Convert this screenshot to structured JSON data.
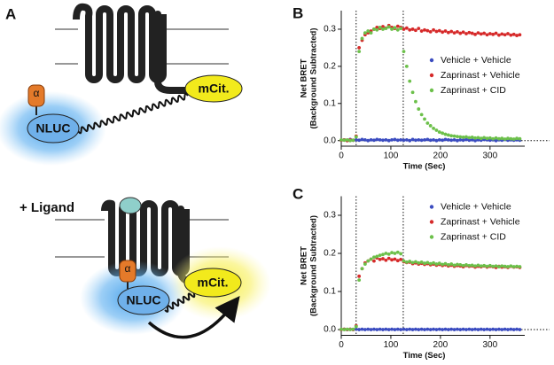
{
  "diagram": {
    "panel": "A",
    "top": {
      "acceptor": "mCit.",
      "donor": "NLUC",
      "g_protein": "α"
    },
    "bottom": {
      "condition": "+ Ligand",
      "acceptor": "mCit.",
      "donor": "NLUC",
      "g_protein": "α"
    }
  },
  "chart_data": [
    {
      "type": "scatter",
      "panel": "B",
      "xlabel": "Time (Sec)",
      "ylabel": [
        "Net BRET",
        "(Background Subtracted)"
      ],
      "xlim": [
        0,
        370
      ],
      "xticks": [
        0,
        100,
        200,
        300
      ],
      "ylim": [
        -0.015,
        0.35
      ],
      "yticks": [
        {
          "value": 0,
          "label": "0.0"
        },
        {
          "value": 0.1,
          "label": "0.1"
        },
        {
          "value": 0.2,
          "label": "0.2"
        },
        {
          "value": 0.3,
          "label": "0.3"
        }
      ],
      "vlines": [
        30,
        125
      ],
      "legend": "center right",
      "x": [
        0,
        6,
        12,
        18,
        24,
        30,
        36,
        42,
        48,
        54,
        60,
        66,
        72,
        78,
        84,
        90,
        96,
        102,
        108,
        114,
        120,
        126,
        132,
        138,
        144,
        150,
        156,
        162,
        168,
        174,
        180,
        186,
        192,
        198,
        204,
        210,
        216,
        222,
        228,
        234,
        240,
        246,
        252,
        258,
        264,
        270,
        276,
        282,
        288,
        294,
        300,
        306,
        312,
        318,
        324,
        330,
        336,
        342,
        348,
        354,
        360
      ],
      "series": [
        {
          "name": "Vehicle + Vehicle",
          "color": "#3b4cc0",
          "values": [
            0.001,
            0.002,
            0.0,
            0.003,
            0.001,
            0.002,
            0.001,
            0.003,
            0.002,
            0.0,
            0.002,
            0.001,
            0.003,
            0.002,
            0.001,
            0.002,
            0.0,
            0.002,
            0.003,
            0.001,
            0.002,
            0.001,
            0.002,
            0.0,
            0.003,
            0.001,
            0.002,
            0.001,
            0.002,
            0.003,
            0.001,
            0.002,
            0.0,
            0.002,
            0.001,
            0.003,
            0.002,
            0.001,
            0.002,
            0.0,
            0.002,
            0.001,
            0.003,
            0.001,
            0.002,
            0.0,
            0.002,
            0.001,
            0.003,
            0.002,
            0.001,
            0.002,
            0.0,
            0.002,
            0.001,
            0.003,
            0.001,
            0.002,
            0.001,
            0.002,
            0.001
          ]
        },
        {
          "name": "Zaprinast + Vehicle",
          "color": "#d62a2a",
          "values": [
            0.001,
            0.002,
            0.0,
            0.002,
            0.001,
            0.012,
            0.25,
            0.27,
            0.285,
            0.29,
            0.295,
            0.3,
            0.305,
            0.302,
            0.307,
            0.303,
            0.31,
            0.305,
            0.302,
            0.308,
            0.305,
            0.3,
            0.303,
            0.298,
            0.3,
            0.297,
            0.302,
            0.295,
            0.298,
            0.296,
            0.293,
            0.298,
            0.294,
            0.296,
            0.292,
            0.295,
            0.291,
            0.294,
            0.29,
            0.293,
            0.289,
            0.292,
            0.288,
            0.291,
            0.289,
            0.286,
            0.29,
            0.287,
            0.289,
            0.285,
            0.288,
            0.286,
            0.289,
            0.284,
            0.287,
            0.285,
            0.288,
            0.284,
            0.286,
            0.283,
            0.285
          ]
        },
        {
          "name": "Zaprinast + CID",
          "color": "#6cc04a",
          "values": [
            0.002,
            0.001,
            0.002,
            0.0,
            0.001,
            0.01,
            0.24,
            0.275,
            0.29,
            0.295,
            0.29,
            0.3,
            0.298,
            0.305,
            0.3,
            0.302,
            0.306,
            0.3,
            0.304,
            0.298,
            0.302,
            0.24,
            0.2,
            0.16,
            0.13,
            0.105,
            0.085,
            0.07,
            0.058,
            0.047,
            0.04,
            0.033,
            0.028,
            0.023,
            0.02,
            0.017,
            0.015,
            0.013,
            0.012,
            0.011,
            0.01,
            0.009,
            0.01,
            0.008,
            0.009,
            0.007,
            0.008,
            0.006,
            0.008,
            0.006,
            0.007,
            0.005,
            0.007,
            0.005,
            0.006,
            0.004,
            0.006,
            0.005,
            0.004,
            0.006,
            0.005
          ]
        }
      ]
    },
    {
      "type": "scatter",
      "panel": "C",
      "xlabel": "Time (Sec)",
      "ylabel": [
        "Net BRET",
        "(Background Subtracted)"
      ],
      "xlim": [
        0,
        370
      ],
      "xticks": [
        0,
        100,
        200,
        300
      ],
      "ylim": [
        -0.015,
        0.35
      ],
      "yticks": [
        {
          "value": 0,
          "label": "0.0"
        },
        {
          "value": 0.1,
          "label": "0.1"
        },
        {
          "value": 0.2,
          "label": "0.2"
        },
        {
          "value": 0.3,
          "label": "0.3"
        }
      ],
      "vlines": [
        30,
        125
      ],
      "legend": "upper right",
      "x": [
        0,
        6,
        12,
        18,
        24,
        30,
        36,
        42,
        48,
        54,
        60,
        66,
        72,
        78,
        84,
        90,
        96,
        102,
        108,
        114,
        120,
        126,
        132,
        138,
        144,
        150,
        156,
        162,
        168,
        174,
        180,
        186,
        192,
        198,
        204,
        210,
        216,
        222,
        228,
        234,
        240,
        246,
        252,
        258,
        264,
        270,
        276,
        282,
        288,
        294,
        300,
        306,
        312,
        318,
        324,
        330,
        336,
        342,
        348,
        354,
        360
      ],
      "series": [
        {
          "name": "Vehicle + Vehicle",
          "color": "#3b4cc0",
          "values": [
            0.0,
            0.001,
            0.0,
            0.001,
            0.0,
            0.001,
            0.0,
            0.001,
            0.0,
            0.001,
            0.0,
            0.001,
            0.0,
            0.001,
            0.0,
            0.001,
            0.0,
            0.001,
            0.0,
            0.001,
            0.0,
            0.001,
            0.0,
            0.001,
            0.0,
            0.001,
            0.0,
            0.001,
            0.0,
            0.001,
            0.0,
            0.001,
            0.0,
            0.001,
            0.0,
            0.001,
            0.0,
            0.001,
            0.0,
            0.001,
            0.0,
            0.001,
            0.0,
            0.001,
            0.0,
            0.001,
            0.0,
            0.001,
            0.0,
            0.001,
            0.0,
            0.001,
            0.0,
            0.001,
            0.0,
            0.001,
            0.0,
            0.001,
            0.0,
            0.001,
            0.0
          ]
        },
        {
          "name": "Zaprinast + Vehicle",
          "color": "#d62a2a",
          "values": [
            0.0,
            0.001,
            0.0,
            0.001,
            0.0,
            0.01,
            0.14,
            0.16,
            0.175,
            0.18,
            0.185,
            0.18,
            0.188,
            0.184,
            0.186,
            0.182,
            0.187,
            0.183,
            0.185,
            0.181,
            0.184,
            0.178,
            0.176,
            0.177,
            0.173,
            0.175,
            0.172,
            0.174,
            0.171,
            0.173,
            0.17,
            0.172,
            0.169,
            0.171,
            0.168,
            0.17,
            0.167,
            0.169,
            0.166,
            0.168,
            0.167,
            0.165,
            0.168,
            0.166,
            0.167,
            0.164,
            0.166,
            0.165,
            0.167,
            0.164,
            0.166,
            0.165,
            0.163,
            0.166,
            0.164,
            0.165,
            0.163,
            0.166,
            0.164,
            0.165,
            0.163
          ]
        },
        {
          "name": "Zaprinast + CID",
          "color": "#6cc04a",
          "values": [
            0.001,
            0.0,
            0.001,
            0.0,
            0.001,
            0.008,
            0.13,
            0.16,
            0.172,
            0.18,
            0.185,
            0.19,
            0.192,
            0.195,
            0.197,
            0.2,
            0.198,
            0.202,
            0.2,
            0.203,
            0.199,
            0.18,
            0.177,
            0.179,
            0.176,
            0.178,
            0.175,
            0.177,
            0.174,
            0.176,
            0.173,
            0.175,
            0.172,
            0.174,
            0.171,
            0.173,
            0.17,
            0.172,
            0.169,
            0.171,
            0.17,
            0.168,
            0.17,
            0.168,
            0.169,
            0.167,
            0.169,
            0.167,
            0.168,
            0.166,
            0.168,
            0.166,
            0.167,
            0.165,
            0.167,
            0.166,
            0.165,
            0.167,
            0.165,
            0.166,
            0.165
          ]
        }
      ]
    }
  ]
}
